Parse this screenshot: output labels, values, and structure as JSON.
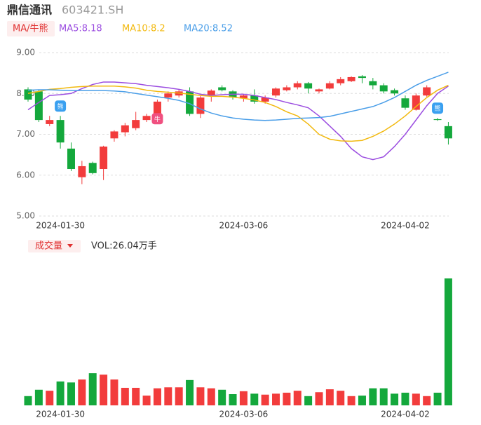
{
  "header": {
    "name": "鼎信通讯",
    "code": "603421.SH"
  },
  "legend_label": "MA/牛熊",
  "chart_data": [
    {
      "type": "candlestick",
      "categories": [
        null,
        null,
        null,
        "2024-01-30",
        null,
        null,
        null,
        null,
        null,
        null,
        null,
        null,
        null,
        null,
        null,
        null,
        null,
        null,
        null,
        null,
        "2024-03-06",
        null,
        null,
        null,
        null,
        null,
        null,
        null,
        null,
        null,
        null,
        null,
        null,
        null,
        null,
        "2024-04-02",
        null,
        null,
        null,
        null
      ],
      "open": [
        8.1,
        8.05,
        7.25,
        7.35,
        6.65,
        5.95,
        6.3,
        6.15,
        6.9,
        7.05,
        7.15,
        7.35,
        7.5,
        7.9,
        7.95,
        8.05,
        7.5,
        7.95,
        8.15,
        8.05,
        7.88,
        7.95,
        7.8,
        7.95,
        8.08,
        8.15,
        8.25,
        8.05,
        8.12,
        8.25,
        8.3,
        8.42,
        8.3,
        8.2,
        8.08,
        7.88,
        7.6,
        7.95,
        7.37,
        7.2
      ],
      "high": [
        8.15,
        8.1,
        7.45,
        7.45,
        6.8,
        6.35,
        6.33,
        6.72,
        7.1,
        7.28,
        7.55,
        7.5,
        7.85,
        8.05,
        8.1,
        8.15,
        7.95,
        8.1,
        8.2,
        8.08,
        7.98,
        8.1,
        7.95,
        8.15,
        8.2,
        8.3,
        8.28,
        8.12,
        8.3,
        8.4,
        8.42,
        8.45,
        8.38,
        8.25,
        8.12,
        7.95,
        8.0,
        8.2,
        7.4,
        7.3
      ],
      "low": [
        7.8,
        7.3,
        7.2,
        6.65,
        6.1,
        5.78,
        6.02,
        5.88,
        6.82,
        6.95,
        7.1,
        7.3,
        7.45,
        7.8,
        7.9,
        7.45,
        7.4,
        7.8,
        8.05,
        7.85,
        7.8,
        7.75,
        7.75,
        7.9,
        8.05,
        8.1,
        8.0,
        8.0,
        8.1,
        8.2,
        8.28,
        8.25,
        8.1,
        8.0,
        7.95,
        7.6,
        7.58,
        7.92,
        7.33,
        6.75
      ],
      "close": [
        7.85,
        7.35,
        7.35,
        6.8,
        6.15,
        6.22,
        6.05,
        6.7,
        7.07,
        7.22,
        7.35,
        7.45,
        7.8,
        8.0,
        8.05,
        7.5,
        7.9,
        8.07,
        8.08,
        7.9,
        7.95,
        7.8,
        7.9,
        8.12,
        8.15,
        8.25,
        8.12,
        8.1,
        8.25,
        8.35,
        8.4,
        8.38,
        8.2,
        8.05,
        8.0,
        7.65,
        7.95,
        8.15,
        7.35,
        6.9
      ],
      "up_color": "#f23c3c",
      "down_color": "#14a83c",
      "series": [
        {
          "name": "MA5:8.18",
          "color": "#9b4de0",
          "values": [
            7.6,
            7.78,
            7.95,
            7.97,
            8.0,
            8.12,
            8.22,
            8.28,
            8.28,
            8.26,
            8.24,
            8.2,
            8.17,
            8.14,
            8.1,
            8.05,
            7.98,
            7.95,
            7.97,
            7.98,
            7.98,
            7.95,
            7.9,
            7.85,
            7.78,
            7.72,
            7.65,
            7.45,
            7.2,
            6.95,
            6.65,
            6.45,
            6.38,
            6.45,
            6.7,
            7.0,
            7.35,
            7.7,
            8.0,
            8.18
          ]
        },
        {
          "name": "MA10:8.2",
          "color": "#f2b90f",
          "values": [
            8.0,
            8.05,
            8.1,
            8.12,
            8.15,
            8.17,
            8.18,
            8.18,
            8.18,
            8.16,
            8.13,
            8.08,
            8.05,
            8.03,
            8.01,
            7.98,
            7.95,
            7.93,
            7.93,
            7.91,
            7.88,
            7.84,
            7.78,
            7.68,
            7.55,
            7.45,
            7.25,
            7.0,
            6.88,
            6.84,
            6.83,
            6.85,
            6.95,
            7.08,
            7.25,
            7.45,
            7.68,
            7.9,
            8.08,
            8.2
          ]
        },
        {
          "name": "MA20:8.52",
          "color": "#4a9ee8",
          "values": [
            8.08,
            8.09,
            8.09,
            8.08,
            8.07,
            8.07,
            8.07,
            8.07,
            8.06,
            8.04,
            8.0,
            7.96,
            7.92,
            7.88,
            7.83,
            7.75,
            7.62,
            7.52,
            7.45,
            7.4,
            7.37,
            7.35,
            7.34,
            7.35,
            7.37,
            7.39,
            7.4,
            7.41,
            7.44,
            7.5,
            7.56,
            7.62,
            7.68,
            7.78,
            7.9,
            8.05,
            8.2,
            8.32,
            8.42,
            8.52
          ]
        }
      ],
      "annotations": [
        {
          "text": "熊",
          "index": 3,
          "color": "#3aa0f0"
        },
        {
          "text": "牛",
          "index": 12,
          "color": "#f05080"
        },
        {
          "text": "熊",
          "index": 38,
          "color": "#3aa0f0"
        }
      ],
      "ylim": [
        5,
        9
      ],
      "yticks": [
        {
          "value": 9,
          "label": "9.00"
        },
        {
          "value": 8,
          "label": "8.00"
        },
        {
          "value": 7,
          "label": "7.00"
        },
        {
          "value": 6,
          "label": "6.00"
        },
        {
          "value": 5,
          "label": "5.00"
        }
      ],
      "grid": true
    },
    {
      "type": "bar",
      "title": "成交量",
      "volume_label": "VOL:26.04万手",
      "categories": [
        null,
        null,
        null,
        "2024-01-30",
        null,
        null,
        null,
        null,
        null,
        null,
        null,
        null,
        null,
        null,
        null,
        null,
        null,
        null,
        null,
        null,
        "2024-03-06",
        null,
        null,
        null,
        null,
        null,
        null,
        null,
        null,
        null,
        null,
        null,
        null,
        null,
        null,
        "2024-04-02",
        null,
        null,
        null,
        null
      ],
      "values": [
        1.9,
        3.2,
        3.0,
        4.9,
        4.7,
        5.3,
        6.6,
        6.3,
        5.3,
        3.6,
        3.6,
        2.0,
        3.5,
        3.7,
        3.7,
        5.2,
        3.7,
        3.5,
        3.2,
        2.3,
        2.9,
        2.4,
        2.2,
        2.4,
        2.6,
        3.0,
        1.9,
        2.7,
        3.3,
        3.0,
        1.9,
        2.0,
        3.5,
        3.5,
        2.4,
        2.6,
        2.4,
        1.9,
        2.6,
        26.04
      ],
      "ylim": [
        0,
        26.04
      ]
    }
  ]
}
